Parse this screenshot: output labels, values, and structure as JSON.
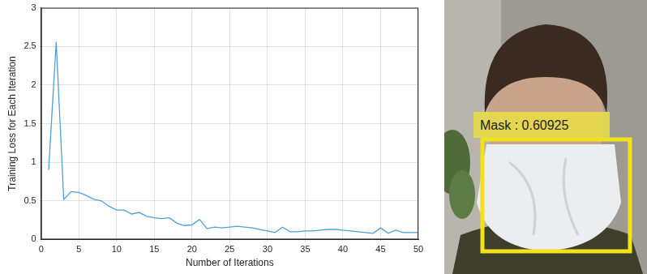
{
  "chart_data": {
    "type": "line",
    "x_label": "Number of Iterations",
    "y_label": "Training Loss for Each Iteration",
    "x": [
      1,
      2,
      3,
      4,
      5,
      6,
      7,
      8,
      9,
      10,
      11,
      12,
      13,
      14,
      15,
      16,
      17,
      18,
      19,
      20,
      21,
      22,
      23,
      24,
      25,
      26,
      27,
      28,
      29,
      30,
      31,
      32,
      33,
      34,
      35,
      36,
      37,
      38,
      39,
      40,
      41,
      42,
      43,
      44,
      45,
      46,
      47,
      48,
      49,
      50
    ],
    "values": [
      0.9,
      2.56,
      0.52,
      0.62,
      0.61,
      0.57,
      0.52,
      0.5,
      0.43,
      0.38,
      0.38,
      0.33,
      0.35,
      0.3,
      0.28,
      0.27,
      0.28,
      0.21,
      0.18,
      0.19,
      0.26,
      0.14,
      0.16,
      0.15,
      0.16,
      0.17,
      0.16,
      0.15,
      0.13,
      0.11,
      0.09,
      0.16,
      0.1,
      0.1,
      0.11,
      0.11,
      0.12,
      0.13,
      0.13,
      0.12,
      0.11,
      0.1,
      0.09,
      0.08,
      0.15,
      0.08,
      0.12,
      0.09,
      0.09,
      0.09
    ],
    "color": "#4e9fd8",
    "xlim": [
      0,
      50
    ],
    "xticks": [
      0,
      5,
      10,
      15,
      20,
      25,
      30,
      35,
      40,
      45,
      50
    ],
    "ylim": [
      0,
      3
    ],
    "yticks": [
      0,
      0.5,
      1,
      1.5,
      2,
      2.5,
      3
    ],
    "grid": true
  },
  "photo": {
    "box_label": "Mask : 0.60925"
  }
}
